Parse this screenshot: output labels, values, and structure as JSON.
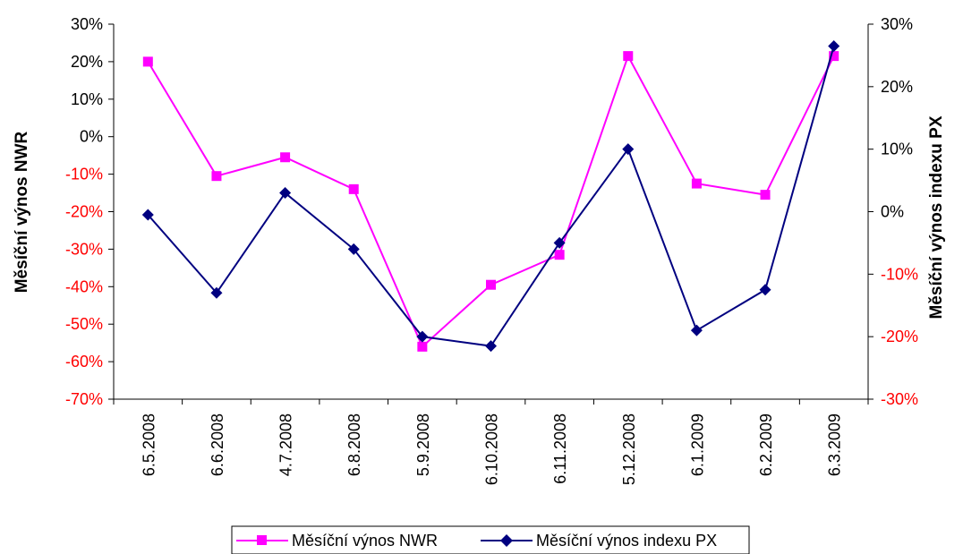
{
  "chart_data": {
    "type": "line",
    "categories": [
      "6.5.2008",
      "6.6.2008",
      "4.7.2008",
      "6.8.2008",
      "5.9.2008",
      "6.10.2008",
      "6.11.2008",
      "5.12.2008",
      "6.1.2009",
      "6.2.2009",
      "6.3.2009"
    ],
    "series": [
      {
        "name": "Měsíční výnos NWR",
        "axis": "left",
        "color": "#ff00ff",
        "marker": "square",
        "values": [
          20,
          -10.5,
          -5.5,
          -14,
          -56,
          -39.5,
          -31.5,
          21.5,
          -12.5,
          -15.5,
          21.5
        ]
      },
      {
        "name": "Měsíční výnos indexu PX",
        "axis": "right",
        "color": "#000080",
        "marker": "diamond",
        "values": [
          -0.5,
          -13,
          3,
          -6,
          -20,
          -21.5,
          -5,
          10,
          -19,
          -12.5,
          26.5
        ]
      }
    ],
    "y_left": {
      "label": "Měsíční výnos NWR",
      "range": [
        -70,
        30
      ],
      "ticks": [
        "30%",
        "20%",
        "10%",
        "0%",
        "-10%",
        "-20%",
        "-30%",
        "-40%",
        "-50%",
        "-60%",
        "-70%"
      ],
      "negative_color": "#ff0000"
    },
    "y_right": {
      "label": "Měsíční výnos indexu PX",
      "range": [
        -30,
        30
      ],
      "ticks": [
        "30%",
        "20%",
        "10%",
        "0%",
        "-10%",
        "-20%",
        "-30%"
      ],
      "negative_color": "#ff0000"
    },
    "grid": false,
    "legend_position": "bottom"
  }
}
